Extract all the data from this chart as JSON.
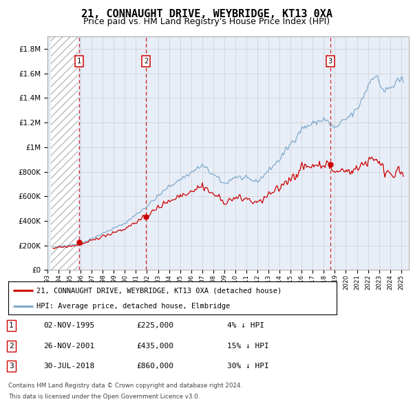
{
  "title": "21, CONNAUGHT DRIVE, WEYBRIDGE, KT13 0XA",
  "subtitle": "Price paid vs. HM Land Registry's House Price Index (HPI)",
  "ylabel_ticks": [
    "£0",
    "£200K",
    "£400K",
    "£600K",
    "£800K",
    "£1M",
    "£1.2M",
    "£1.4M",
    "£1.6M",
    "£1.8M"
  ],
  "ytick_values": [
    0,
    200000,
    400000,
    600000,
    800000,
    1000000,
    1200000,
    1400000,
    1600000,
    1800000
  ],
  "ylim": [
    0,
    1900000
  ],
  "xlim_start": 1993.3,
  "xlim_end": 2025.7,
  "hatch_end_year": 1995.75,
  "sale_dates_dec": [
    1995.84,
    2001.9,
    2018.58
  ],
  "sale_prices": [
    225000,
    435000,
    860000
  ],
  "sale_labels": [
    "1",
    "2",
    "3"
  ],
  "legend_line1": "21, CONNAUGHT DRIVE, WEYBRIDGE, KT13 0XA (detached house)",
  "legend_line2": "HPI: Average price, detached house, Elmbridge",
  "table_entries": [
    {
      "num": "1",
      "date": "02-NOV-1995",
      "price": "£225,000",
      "hpi": "4% ↓ HPI"
    },
    {
      "num": "2",
      "date": "26-NOV-2001",
      "price": "£435,000",
      "hpi": "15% ↓ HPI"
    },
    {
      "num": "3",
      "date": "30-JUL-2018",
      "price": "£860,000",
      "hpi": "30% ↓ HPI"
    }
  ],
  "footnote1": "Contains HM Land Registry data © Crown copyright and database right 2024.",
  "footnote2": "This data is licensed under the Open Government Licence v3.0.",
  "red_line_color": "#cc0000",
  "blue_line_color": "#7faacc",
  "grid_color": "#cccccc",
  "bg_color": "#e8eef8",
  "plot_bg": "#ffffff",
  "hatch_bg": "#ffffff",
  "title_fontsize": 11,
  "subtitle_fontsize": 9
}
